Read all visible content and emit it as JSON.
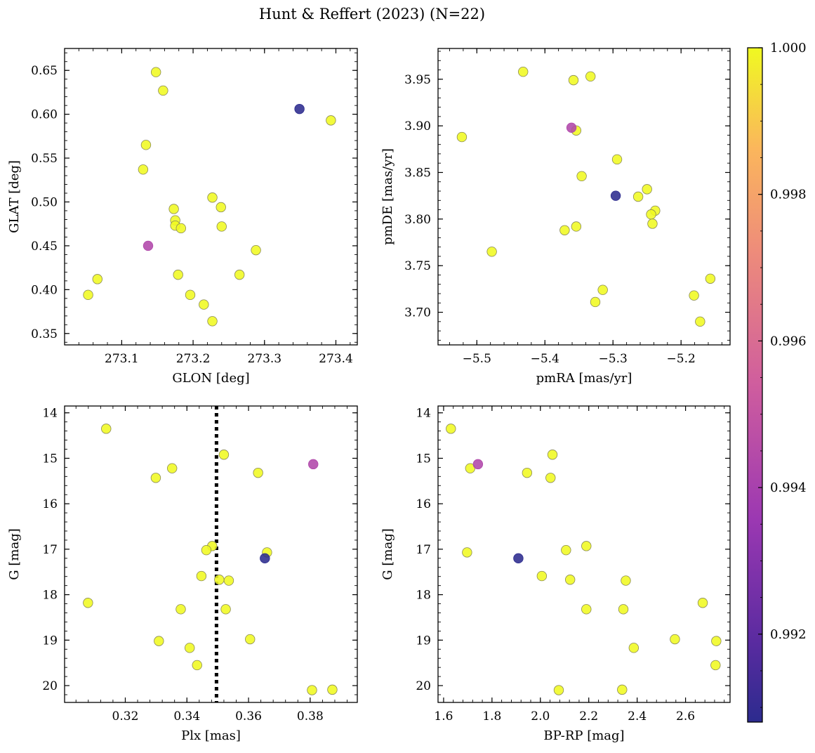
{
  "figure": {
    "title": "Hunt & Reffert (2023) (N=22)"
  },
  "colorbar": {
    "min": 0.9908,
    "max": 1.0,
    "ticks": [
      0.992,
      0.994,
      0.996,
      0.998,
      1.0
    ],
    "tick_labels": [
      "0.992",
      "0.994",
      "0.996",
      "0.998",
      "1.000"
    ],
    "colormap": "plasma"
  },
  "colors": {
    "member": "#f0f921",
    "member_edge": "#8a8a55",
    "low1": "#b83d9e",
    "low2": "#2c2b8e"
  },
  "chart_data": [
    {
      "id": "glon-glat",
      "type": "scatter",
      "xlabel": "GLON [deg]",
      "ylabel": "GLAT [deg]",
      "xlim": [
        273.02,
        273.43
      ],
      "ylim": [
        0.337,
        0.675
      ],
      "xticks": [
        273.1,
        273.2,
        273.3,
        273.4
      ],
      "xtick_labels": [
        "273.1",
        "273.2",
        "273.3",
        "273.4"
      ],
      "yticks": [
        0.35,
        0.4,
        0.45,
        0.5,
        0.55,
        0.6,
        0.65
      ],
      "ytick_labels": [
        "0.35",
        "0.40",
        "0.45",
        "0.50",
        "0.55",
        "0.60",
        "0.65"
      ],
      "points": [
        {
          "x": 273.148,
          "y": 0.648,
          "c": 1.0
        },
        {
          "x": 273.158,
          "y": 0.627,
          "c": 1.0
        },
        {
          "x": 273.393,
          "y": 0.593,
          "c": 1.0
        },
        {
          "x": 273.134,
          "y": 0.565,
          "c": 1.0
        },
        {
          "x": 273.13,
          "y": 0.537,
          "c": 1.0
        },
        {
          "x": 273.227,
          "y": 0.505,
          "c": 1.0
        },
        {
          "x": 273.239,
          "y": 0.494,
          "c": 1.0
        },
        {
          "x": 273.173,
          "y": 0.492,
          "c": 1.0
        },
        {
          "x": 273.175,
          "y": 0.479,
          "c": 1.0
        },
        {
          "x": 273.175,
          "y": 0.473,
          "c": 1.0
        },
        {
          "x": 273.183,
          "y": 0.47,
          "c": 1.0
        },
        {
          "x": 273.24,
          "y": 0.472,
          "c": 1.0
        },
        {
          "x": 273.288,
          "y": 0.445,
          "c": 1.0
        },
        {
          "x": 273.179,
          "y": 0.417,
          "c": 1.0
        },
        {
          "x": 273.265,
          "y": 0.417,
          "c": 1.0
        },
        {
          "x": 273.066,
          "y": 0.412,
          "c": 1.0
        },
        {
          "x": 273.053,
          "y": 0.394,
          "c": 1.0
        },
        {
          "x": 273.196,
          "y": 0.394,
          "c": 1.0
        },
        {
          "x": 273.215,
          "y": 0.383,
          "c": 1.0
        },
        {
          "x": 273.227,
          "y": 0.364,
          "c": 1.0
        },
        {
          "x": 273.137,
          "y": 0.45,
          "c": 0.9943
        },
        {
          "x": 273.349,
          "y": 0.606,
          "c": 0.9908
        }
      ]
    },
    {
      "id": "pm",
      "type": "scatter",
      "xlabel": "pmRA [mas/yr]",
      "ylabel": "pmDE [mas/yr]",
      "xlim": [
        -5.557,
        -5.128
      ],
      "ylim": [
        3.665,
        3.983
      ],
      "xticks": [
        -5.5,
        -5.4,
        -5.3,
        -5.2
      ],
      "xtick_labels": [
        "−5.5",
        "−5.4",
        "−5.3",
        "−5.2"
      ],
      "yticks": [
        3.7,
        3.75,
        3.8,
        3.85,
        3.9,
        3.95
      ],
      "ytick_labels": [
        "3.70",
        "3.75",
        "3.80",
        "3.85",
        "3.90",
        "3.95"
      ],
      "points": [
        {
          "x": -5.432,
          "y": 3.958,
          "c": 1.0
        },
        {
          "x": -5.358,
          "y": 3.949,
          "c": 1.0
        },
        {
          "x": -5.333,
          "y": 3.953,
          "c": 1.0
        },
        {
          "x": -5.522,
          "y": 3.888,
          "c": 1.0
        },
        {
          "x": -5.354,
          "y": 3.895,
          "c": 1.0
        },
        {
          "x": -5.294,
          "y": 3.864,
          "c": 1.0
        },
        {
          "x": -5.346,
          "y": 3.846,
          "c": 1.0
        },
        {
          "x": -5.263,
          "y": 3.824,
          "c": 1.0
        },
        {
          "x": -5.25,
          "y": 3.832,
          "c": 1.0
        },
        {
          "x": -5.238,
          "y": 3.809,
          "c": 1.0
        },
        {
          "x": -5.244,
          "y": 3.805,
          "c": 1.0
        },
        {
          "x": -5.242,
          "y": 3.795,
          "c": 1.0
        },
        {
          "x": -5.371,
          "y": 3.788,
          "c": 1.0
        },
        {
          "x": -5.354,
          "y": 3.792,
          "c": 1.0
        },
        {
          "x": -5.478,
          "y": 3.765,
          "c": 1.0
        },
        {
          "x": -5.315,
          "y": 3.724,
          "c": 1.0
        },
        {
          "x": -5.326,
          "y": 3.711,
          "c": 1.0
        },
        {
          "x": -5.181,
          "y": 3.718,
          "c": 1.0
        },
        {
          "x": -5.157,
          "y": 3.736,
          "c": 1.0
        },
        {
          "x": -5.172,
          "y": 3.69,
          "c": 1.0
        },
        {
          "x": -5.361,
          "y": 3.898,
          "c": 0.9943
        },
        {
          "x": -5.296,
          "y": 3.825,
          "c": 0.9908
        }
      ]
    },
    {
      "id": "plx-g",
      "type": "scatter",
      "xlabel": "Plx [mas]",
      "ylabel": "G [mag]",
      "xlim": [
        0.3003,
        0.3953
      ],
      "ylim": [
        20.37,
        13.85
      ],
      "y_inverted": true,
      "xticks": [
        0.32,
        0.34,
        0.36,
        0.38
      ],
      "xtick_labels": [
        "0.32",
        "0.34",
        "0.36",
        "0.38"
      ],
      "yticks": [
        14,
        15,
        16,
        17,
        18,
        19,
        20
      ],
      "ytick_labels": [
        "14",
        "15",
        "16",
        "17",
        "18",
        "19",
        "20"
      ],
      "vline": {
        "x": 0.3496,
        "style": "dotted"
      },
      "points": [
        {
          "x": 0.3138,
          "y": 14.35,
          "c": 1.0
        },
        {
          "x": 0.352,
          "y": 14.92,
          "c": 1.0
        },
        {
          "x": 0.3352,
          "y": 15.22,
          "c": 1.0
        },
        {
          "x": 0.3299,
          "y": 15.43,
          "c": 1.0
        },
        {
          "x": 0.3631,
          "y": 15.32,
          "c": 1.0
        },
        {
          "x": 0.3482,
          "y": 16.93,
          "c": 1.0
        },
        {
          "x": 0.3463,
          "y": 17.02,
          "c": 1.0
        },
        {
          "x": 0.366,
          "y": 17.07,
          "c": 1.0
        },
        {
          "x": 0.3447,
          "y": 17.59,
          "c": 1.0
        },
        {
          "x": 0.3505,
          "y": 17.67,
          "c": 1.0
        },
        {
          "x": 0.3536,
          "y": 17.69,
          "c": 1.0
        },
        {
          "x": 0.3079,
          "y": 18.18,
          "c": 1.0
        },
        {
          "x": 0.338,
          "y": 18.32,
          "c": 1.0
        },
        {
          "x": 0.3526,
          "y": 18.32,
          "c": 1.0
        },
        {
          "x": 0.3309,
          "y": 19.02,
          "c": 1.0
        },
        {
          "x": 0.3605,
          "y": 18.98,
          "c": 1.0
        },
        {
          "x": 0.3409,
          "y": 19.17,
          "c": 1.0
        },
        {
          "x": 0.3433,
          "y": 19.55,
          "c": 1.0
        },
        {
          "x": 0.3806,
          "y": 20.1,
          "c": 1.0
        },
        {
          "x": 0.3872,
          "y": 20.09,
          "c": 1.0
        },
        {
          "x": 0.381,
          "y": 15.13,
          "c": 0.9943
        },
        {
          "x": 0.3653,
          "y": 17.2,
          "c": 0.9908
        }
      ]
    },
    {
      "id": "cmd",
      "type": "scatter",
      "xlabel": "BP-RP [mag]",
      "ylabel": "G [mag]",
      "xlim": [
        1.577,
        2.784
      ],
      "ylim": [
        20.37,
        13.85
      ],
      "y_inverted": true,
      "xticks": [
        1.6,
        1.8,
        2.0,
        2.2,
        2.4,
        2.6
      ],
      "xtick_labels": [
        "1.6",
        "1.8",
        "2.0",
        "2.2",
        "2.4",
        "2.6"
      ],
      "yticks": [
        14,
        15,
        16,
        17,
        18,
        19,
        20
      ],
      "ytick_labels": [
        "14",
        "15",
        "16",
        "17",
        "18",
        "19",
        "20"
      ],
      "points": [
        {
          "x": 1.63,
          "y": 14.35,
          "c": 1.0
        },
        {
          "x": 2.05,
          "y": 14.92,
          "c": 1.0
        },
        {
          "x": 1.71,
          "y": 15.22,
          "c": 1.0
        },
        {
          "x": 1.945,
          "y": 15.32,
          "c": 1.0
        },
        {
          "x": 2.042,
          "y": 15.43,
          "c": 1.0
        },
        {
          "x": 1.697,
          "y": 17.07,
          "c": 1.0
        },
        {
          "x": 2.19,
          "y": 16.93,
          "c": 1.0
        },
        {
          "x": 2.106,
          "y": 17.02,
          "c": 1.0
        },
        {
          "x": 2.006,
          "y": 17.59,
          "c": 1.0
        },
        {
          "x": 2.123,
          "y": 17.67,
          "c": 1.0
        },
        {
          "x": 2.353,
          "y": 17.69,
          "c": 1.0
        },
        {
          "x": 2.19,
          "y": 18.32,
          "c": 1.0
        },
        {
          "x": 2.343,
          "y": 18.32,
          "c": 1.0
        },
        {
          "x": 2.671,
          "y": 18.18,
          "c": 1.0
        },
        {
          "x": 2.556,
          "y": 18.98,
          "c": 1.0
        },
        {
          "x": 2.727,
          "y": 19.02,
          "c": 1.0
        },
        {
          "x": 2.386,
          "y": 19.17,
          "c": 1.0
        },
        {
          "x": 2.724,
          "y": 19.55,
          "c": 1.0
        },
        {
          "x": 2.076,
          "y": 20.1,
          "c": 1.0
        },
        {
          "x": 2.338,
          "y": 20.09,
          "c": 1.0
        },
        {
          "x": 1.742,
          "y": 15.13,
          "c": 0.9943
        },
        {
          "x": 1.909,
          "y": 17.2,
          "c": 0.9908
        }
      ]
    }
  ]
}
